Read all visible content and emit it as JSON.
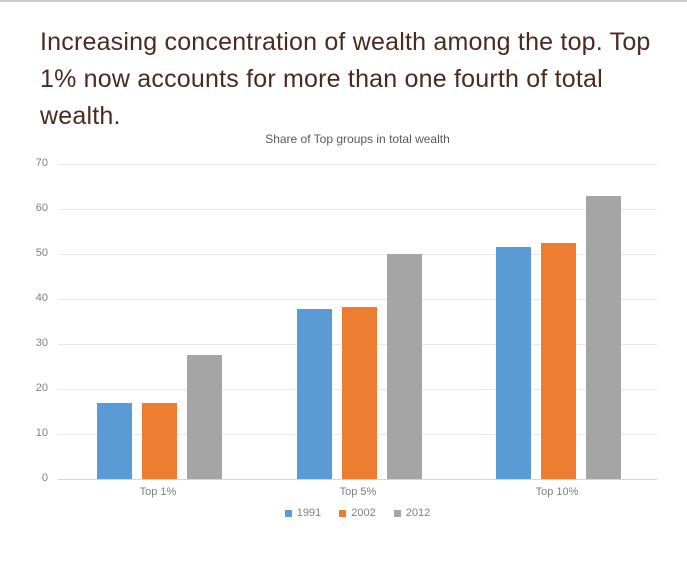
{
  "slide": {
    "title": "Increasing concentration of wealth among the top. Top 1% now accounts for more than one fourth of total wealth.",
    "title_lines": [
      "Increasing concentration of wealth among the top. Top",
      "1% now accounts for more than one fourth of total",
      "wealth."
    ],
    "title_color": "#4b2a20"
  },
  "chart_data": {
    "type": "bar",
    "title": "Share of Top groups in total wealth",
    "categories": [
      "Top 1%",
      "Top 5%",
      "Top 10%"
    ],
    "series": [
      {
        "name": "1991",
        "color": "#5B9BD5",
        "values": [
          17,
          37.8,
          51.5
        ]
      },
      {
        "name": "2002",
        "color": "#ED7D31",
        "values": [
          17,
          38.3,
          52.5
        ]
      },
      {
        "name": "2012",
        "color": "#A5A5A5",
        "values": [
          27.5,
          50,
          63
        ]
      }
    ],
    "xlabel": "",
    "ylabel": "",
    "ylim": [
      0,
      70
    ],
    "yticks": [
      0,
      10,
      20,
      30,
      40,
      50,
      60,
      70
    ],
    "grid": true,
    "legend_position": "bottom"
  }
}
